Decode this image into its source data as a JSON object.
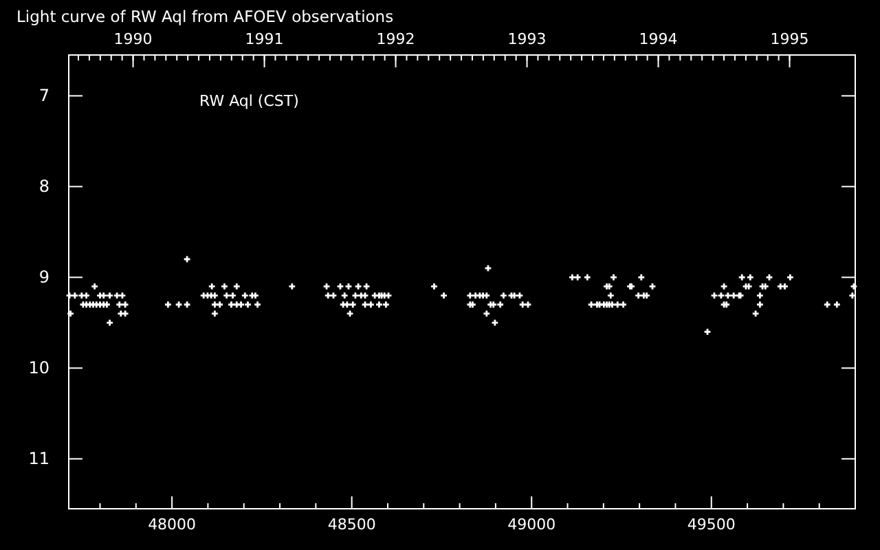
{
  "chart_data": {
    "type": "scatter",
    "title": "Light curve of RW Aql from AFOEV observations",
    "annotations": [
      "RW Aql (CST)"
    ],
    "marker": "cross",
    "grid": false,
    "xlim": [
      47713,
      49900
    ],
    "ylim": [
      11.55,
      6.55
    ],
    "xticks": [
      {
        "value": 47800,
        "label": null
      },
      {
        "value": 47900,
        "label": null
      },
      48000,
      {
        "value": 48100,
        "label": null
      },
      {
        "value": 48200,
        "label": null
      },
      {
        "value": 48300,
        "label": null
      },
      {
        "value": 48400,
        "label": null
      },
      48500,
      {
        "value": 48600,
        "label": null
      },
      {
        "value": 48700,
        "label": null
      },
      {
        "value": 48800,
        "label": null
      },
      {
        "value": 48900,
        "label": null
      },
      49000,
      {
        "value": 49100,
        "label": null
      },
      {
        "value": 49200,
        "label": null
      },
      {
        "value": 49300,
        "label": null
      },
      {
        "value": 49400,
        "label": null
      },
      49500,
      {
        "value": 49600,
        "label": null
      },
      {
        "value": 49700,
        "label": null
      },
      {
        "value": 49800,
        "label": null
      }
    ],
    "x2lim": [
      1989.51,
      1995.5
    ],
    "x2ticks": [
      1990,
      1991,
      1992,
      1993,
      1994,
      1995
    ],
    "yticks": [
      7,
      8,
      9,
      10,
      11
    ],
    "series": [
      {
        "color": "#ffffff",
        "x": [
          47715,
          47718,
          47730,
          47749,
          47753,
          47762,
          47762,
          47772,
          47781,
          47785,
          47790,
          47800,
          47800,
          47810,
          47810,
          47819,
          47827,
          47827,
          47847,
          47854,
          47858,
          47862,
          47870,
          47870,
          47989,
          48019,
          48042,
          48042,
          48088,
          48099,
          48109,
          48111,
          48119,
          48119,
          48119,
          48133,
          48146,
          48152,
          48165,
          48169,
          48180,
          48180,
          48192,
          48203,
          48211,
          48223,
          48232,
          48238,
          48334,
          48430,
          48434,
          48449,
          48468,
          48476,
          48480,
          48487,
          48491,
          48495,
          48503,
          48510,
          48518,
          48526,
          48537,
          48537,
          48541,
          48553,
          48564,
          48576,
          48576,
          48583,
          48591,
          48595,
          48602,
          48729,
          48756,
          48829,
          48829,
          48836,
          48844,
          48856,
          48865,
          48875,
          48875,
          48879,
          48886,
          48894,
          48898,
          48913,
          48922,
          48944,
          48952,
          48967,
          48975,
          48990,
          49113,
          49128,
          49155,
          49166,
          49182,
          49189,
          49201,
          49209,
          49209,
          49216,
          49216,
          49220,
          49224,
          49228,
          49239,
          49255,
          49274,
          49278,
          49297,
          49305,
          49312,
          49320,
          49336,
          49489,
          49508,
          49527,
          49535,
          49535,
          49542,
          49546,
          49562,
          49577,
          49581,
          49585,
          49596,
          49604,
          49608,
          49623,
          49635,
          49635,
          49642,
          49650,
          49661,
          49692,
          49704,
          49719,
          49822,
          49849,
          49892,
          49896
        ],
        "values": [
          9.2,
          9.4,
          9.2,
          9.2,
          9.3,
          9.2,
          9.3,
          9.3,
          9.3,
          9.1,
          9.3,
          9.2,
          9.3,
          9.2,
          9.3,
          9.3,
          9.2,
          9.5,
          9.2,
          9.3,
          9.4,
          9.2,
          9.3,
          9.4,
          9.3,
          9.3,
          9.3,
          8.8,
          9.2,
          9.2,
          9.2,
          9.1,
          9.2,
          9.3,
          9.4,
          9.3,
          9.1,
          9.2,
          9.3,
          9.2,
          9.1,
          9.3,
          9.3,
          9.2,
          9.3,
          9.2,
          9.2,
          9.3,
          9.1,
          9.1,
          9.2,
          9.2,
          9.1,
          9.3,
          9.2,
          9.3,
          9.1,
          9.4,
          9.3,
          9.2,
          9.1,
          9.2,
          9.2,
          9.3,
          9.1,
          9.3,
          9.2,
          9.2,
          9.3,
          9.2,
          9.2,
          9.3,
          9.2,
          9.1,
          9.2,
          9.2,
          9.3,
          9.3,
          9.2,
          9.2,
          9.2,
          9.2,
          9.4,
          8.9,
          9.3,
          9.3,
          9.5,
          9.3,
          9.2,
          9.2,
          9.2,
          9.2,
          9.3,
          9.3,
          9.0,
          9.0,
          9.0,
          9.3,
          9.3,
          9.3,
          9.3,
          9.1,
          9.3,
          9.1,
          9.3,
          9.2,
          9.3,
          9.0,
          9.3,
          9.3,
          9.1,
          9.1,
          9.2,
          9.0,
          9.2,
          9.2,
          9.1,
          9.6,
          9.2,
          9.2,
          9.1,
          9.3,
          9.3,
          9.2,
          9.2,
          9.2,
          9.2,
          9.0,
          9.1,
          9.1,
          9.0,
          9.4,
          9.2,
          9.3,
          9.1,
          9.1,
          9.0,
          9.1,
          9.1,
          9.0,
          9.3,
          9.3,
          9.2,
          9.1
        ]
      }
    ]
  }
}
